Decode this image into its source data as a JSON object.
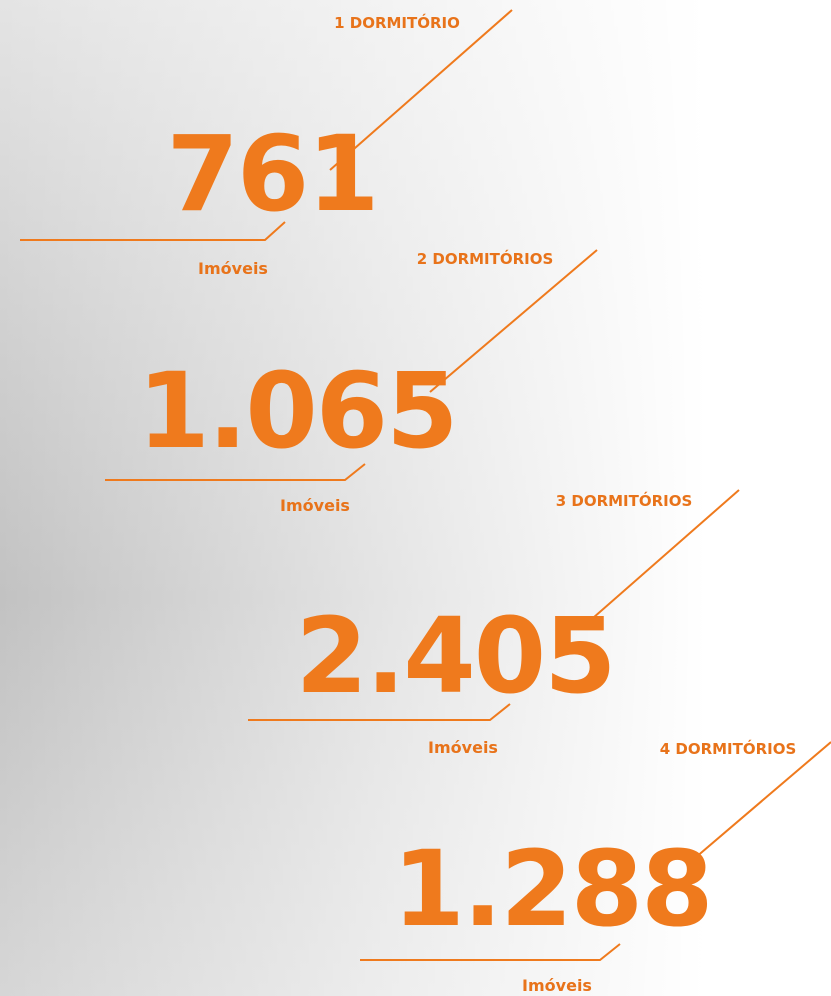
{
  "items": [
    {
      "label": "1 DORMITÓRIO",
      "number": "761",
      "unit": "Imóveis"
    },
    {
      "label": "2 DORMITÓRIOS",
      "number": "1.065",
      "unit": "Imóveis"
    },
    {
      "label": "3 DORMITÓRIOS",
      "number": "2.405",
      "unit": "Imóveis"
    },
    {
      "label": "4 DORMITÓRIOS",
      "number": "1.288",
      "unit": "Imóveis"
    }
  ]
}
